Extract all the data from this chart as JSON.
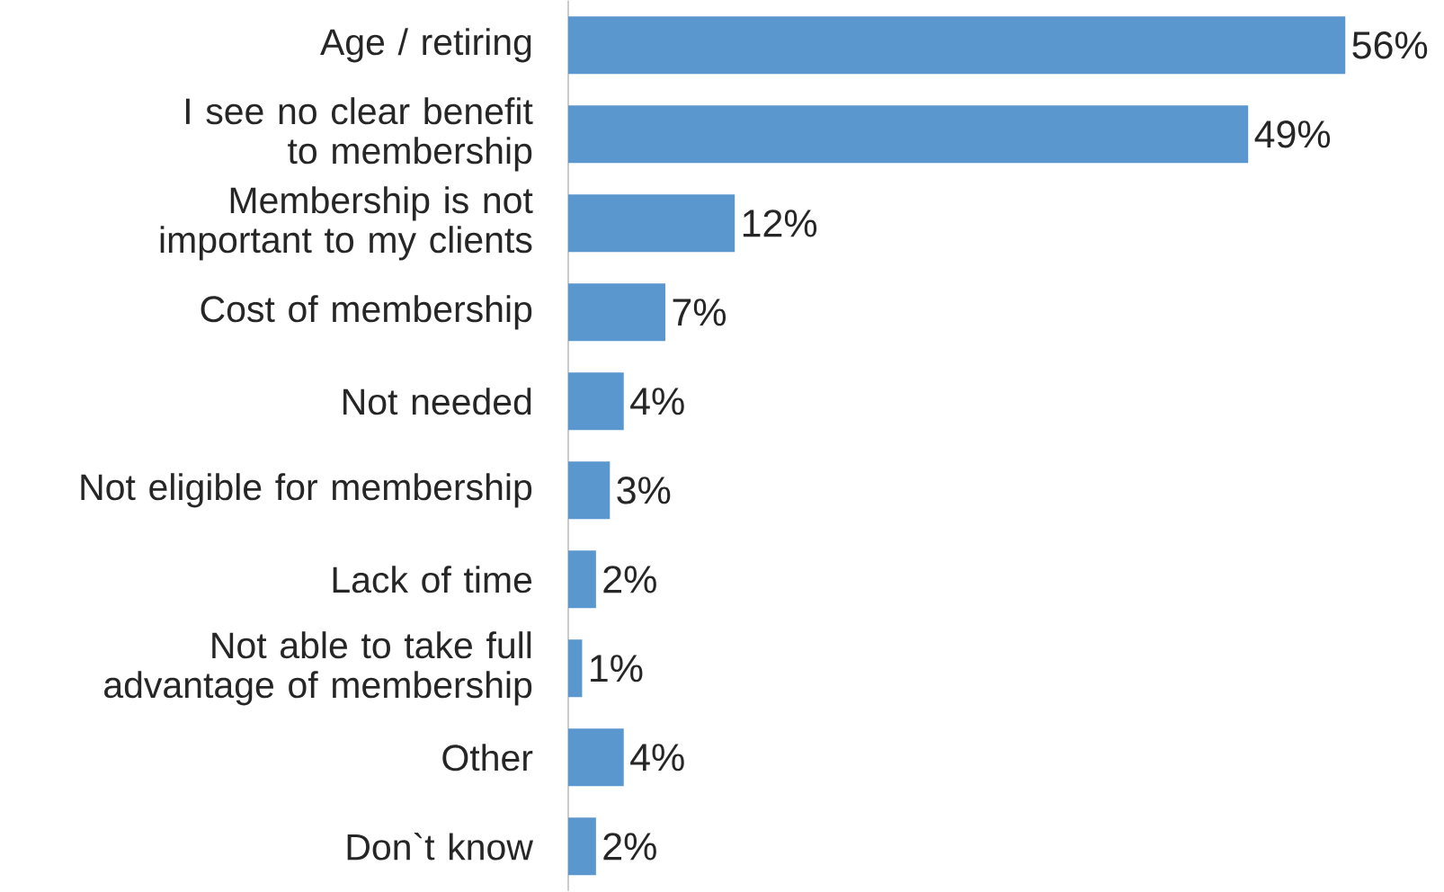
{
  "chart_data": {
    "type": "bar",
    "orientation": "horizontal",
    "categories": [
      "Age / retiring",
      "I see no clear benefit to membership",
      "Membership is not important to my clients",
      "Cost of membership",
      "Not needed",
      "Not eligible for membership",
      "Lack of time",
      "Not able to take full advantage of membership",
      "Other",
      "Don`t know"
    ],
    "values": [
      56,
      49,
      12,
      7,
      4,
      3,
      2,
      1,
      4,
      2
    ],
    "value_labels": [
      "56%",
      "49%",
      "12%",
      "7%",
      "4%",
      "3%",
      "2%",
      "1%",
      "4%",
      "2%"
    ],
    "color": "#5b97cf"
  }
}
